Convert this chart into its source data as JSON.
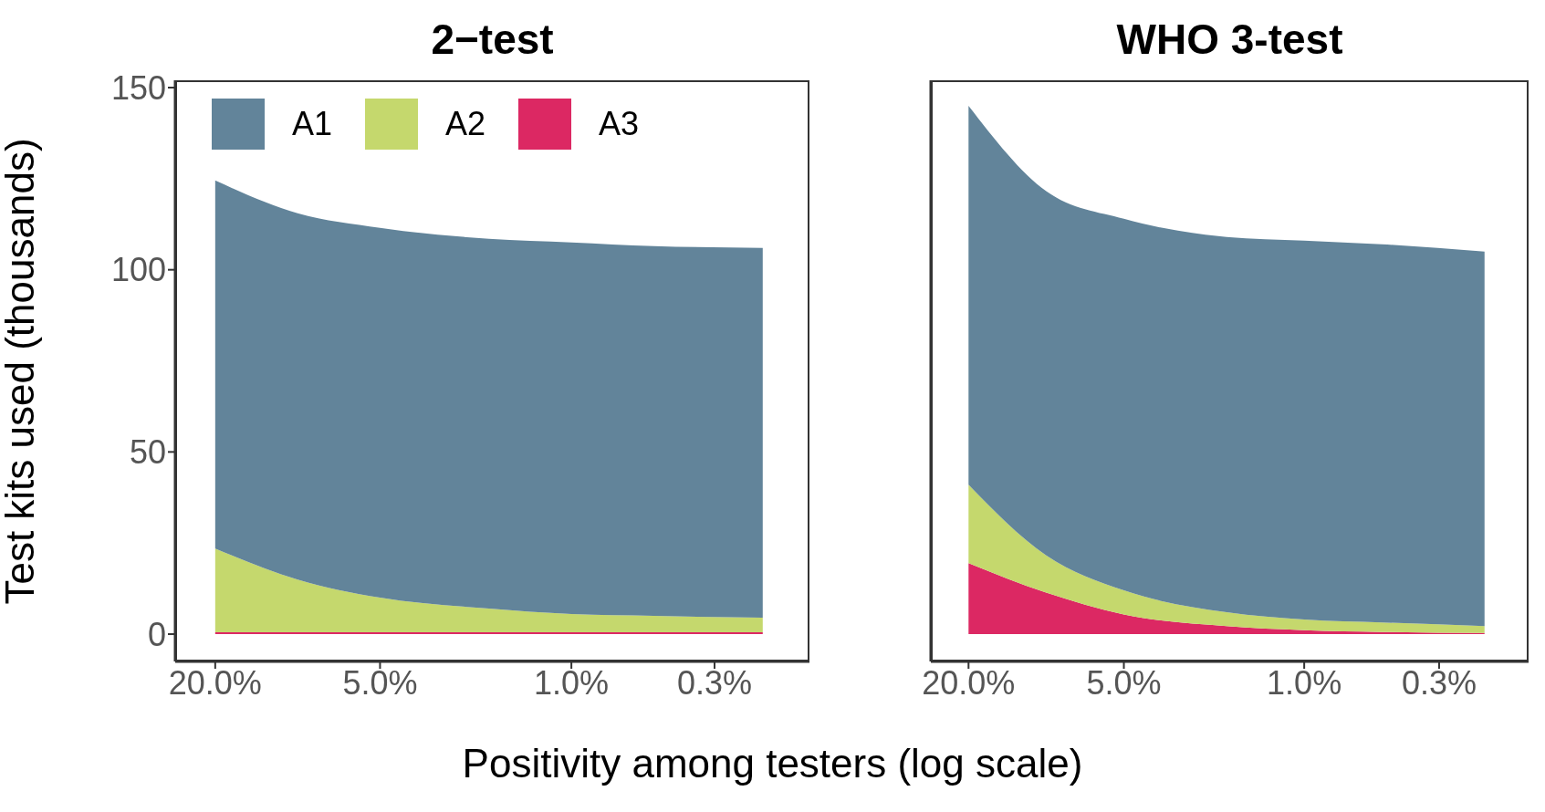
{
  "chart_data": [
    {
      "type": "area",
      "title": "2−test",
      "ylabel": "Test kits used (thousands)",
      "xlabel": "Positivity among testers (log scale)",
      "stacked": true,
      "legend": "top",
      "log": "x",
      "x": [
        20,
        10,
        5,
        2,
        1,
        0.5,
        0.2
      ],
      "series": [
        {
          "name": "A3",
          "color": "#dc2863",
          "values": [
            0.5,
            0.5,
            0.5,
            0.5,
            0.5,
            0.5,
            0.5
          ]
        },
        {
          "name": "A2",
          "color": "#c5d86d",
          "values": [
            23,
            14.5,
            9.5,
            6.5,
            5,
            4.5,
            4
          ]
        },
        {
          "name": "A1",
          "color": "#62849a",
          "values": [
            101,
            100.5,
            101.5,
            101.5,
            102,
            101.5,
            101.5
          ]
        }
      ],
      "xlim": [
        28,
        0.135
      ],
      "xticks": [
        {
          "value": 20,
          "label": "20.0%"
        },
        {
          "value": 5,
          "label": "5.0%"
        },
        {
          "value": 1,
          "label": "1.0%"
        },
        {
          "value": 0.3,
          "label": "0.3%"
        }
      ],
      "ylim": [
        -7.5,
        152
      ],
      "yticks": [
        0,
        50,
        100,
        150
      ]
    },
    {
      "type": "area",
      "title": "WHO 3-test",
      "stacked": true,
      "log": "x",
      "tick_labels": "x",
      "x": [
        20,
        10,
        5,
        2,
        1,
        0.5,
        0.2
      ],
      "series": [
        {
          "color": "#dc2863",
          "values": [
            19.5,
            11.4,
            5.4,
            2.2,
            1.1,
            0.6,
            0.3
          ]
        },
        {
          "color": "#c5d86d",
          "values": [
            21.5,
            10.2,
            6.6,
            3.8,
            2.9,
            2.6,
            1.9
          ]
        },
        {
          "color": "#62849a",
          "values": [
            104,
            100,
            102,
            103,
            104,
            103.8,
            102.8
          ]
        }
      ],
      "xlim": [
        28,
        0.135
      ],
      "xticks": [
        {
          "value": 20,
          "label": "20.0%"
        },
        {
          "value": 5,
          "label": "5.0%"
        },
        {
          "value": 1,
          "label": "1.0%"
        },
        {
          "value": 0.3,
          "label": "0.3%"
        }
      ],
      "ylim": [
        -7.5,
        152
      ],
      "yticks": [
        0,
        50,
        100,
        150
      ]
    }
  ]
}
